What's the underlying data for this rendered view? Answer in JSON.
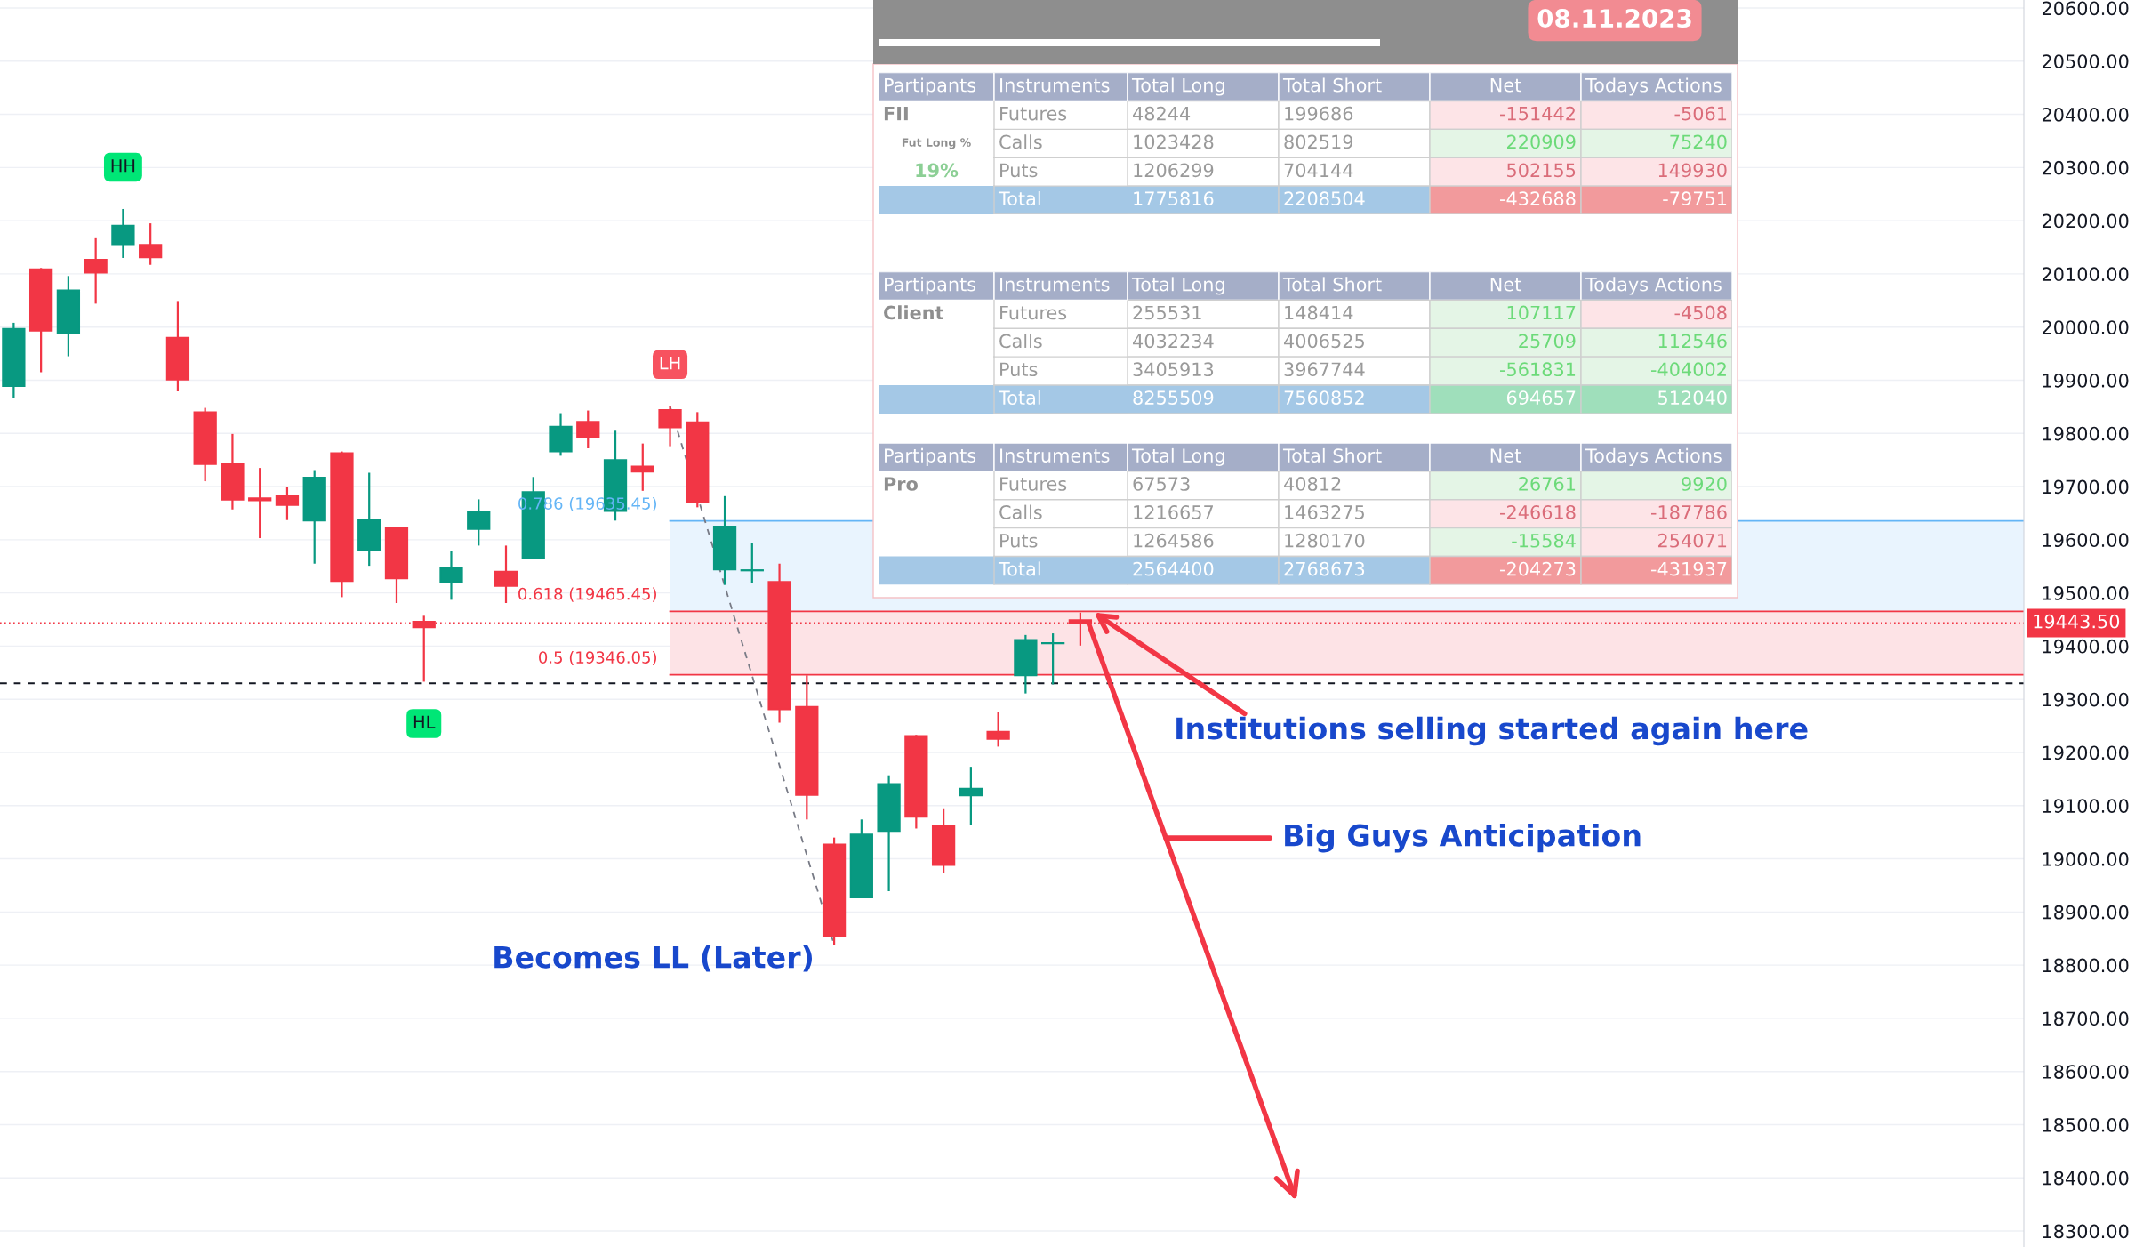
{
  "chart_data": [
    {
      "type": "candlestick",
      "categories": [
        null,
        null,
        null,
        null,
        null,
        null,
        null,
        null,
        null,
        null,
        null,
        null,
        null,
        null,
        null,
        null,
        null,
        null,
        null,
        null,
        null,
        null,
        null,
        null,
        null,
        null,
        null,
        null,
        null,
        null,
        null,
        null,
        null,
        null,
        null,
        null,
        null,
        null,
        null,
        null,
        null,
        null,
        null,
        null,
        null,
        null,
        null,
        null,
        null,
        null,
        null,
        null,
        null,
        null,
        null,
        null,
        null,
        null,
        null,
        null,
        null,
        null,
        null,
        null,
        null,
        null,
        null,
        null,
        null,
        null,
        null,
        null,
        null,
        null
      ],
      "ohlc": [
        [
          19889,
          20008,
          19866,
          19997
        ],
        [
          20109,
          20111,
          19915,
          19993
        ],
        [
          19988,
          20096,
          19945,
          20069
        ],
        [
          20127,
          20167,
          20044,
          20102
        ],
        [
          20154,
          20222,
          20130,
          20191
        ],
        [
          20155,
          20195,
          20117,
          20131
        ],
        [
          19980,
          20049,
          19879,
          19901
        ],
        [
          19840,
          19848,
          19710,
          19742
        ],
        [
          19744,
          19799,
          19657,
          19675
        ],
        [
          19678,
          19735,
          19603,
          19674
        ],
        [
          19683,
          19700,
          19637,
          19665
        ],
        [
          19636,
          19731,
          19555,
          19717
        ],
        [
          19763,
          19766,
          19492,
          19522
        ],
        [
          19580,
          19726,
          19551,
          19638
        ],
        [
          19622,
          19624,
          19481,
          19527
        ],
        [
          19446,
          19457,
          19333,
          19435
        ],
        [
          19520,
          19578,
          19487,
          19547
        ],
        [
          19620,
          19676,
          19589,
          19653
        ],
        [
          19540,
          19589,
          19481,
          19513
        ],
        [
          19565,
          19718,
          19565,
          19690
        ],
        [
          19766,
          19838,
          19758,
          19813
        ],
        [
          19822,
          19843,
          19772,
          19793
        ],
        [
          19654,
          19805,
          19636,
          19750
        ],
        [
          19738,
          19781,
          19692,
          19728
        ],
        [
          19844,
          19851,
          19776,
          19811
        ],
        [
          19821,
          19840,
          19661,
          19671
        ],
        [
          19544,
          19682,
          19515,
          19625
        ],
        [
          19542,
          19593,
          19519,
          19543
        ],
        [
          19521,
          19555,
          19256,
          19281
        ],
        [
          19286,
          19345,
          19074,
          19120
        ],
        [
          19027,
          19040,
          18838,
          18855
        ],
        [
          18927,
          19074,
          18927,
          19046
        ],
        [
          19052,
          19157,
          18939,
          19141
        ],
        [
          19231,
          19233,
          19057,
          19079
        ],
        [
          19062,
          19095,
          18973,
          18988
        ],
        [
          19119,
          19173,
          19064,
          19132
        ],
        [
          19239,
          19276,
          19211,
          19225
        ],
        [
          19345,
          19421,
          19311,
          19412
        ],
        [
          19405,
          19424,
          19328,
          19406
        ],
        [
          19449,
          19463,
          19401,
          19443.5
        ],
        null,
        null,
        null,
        null,
        null,
        null,
        null,
        null,
        null,
        null,
        null,
        null,
        null,
        null,
        null,
        null,
        null,
        null,
        null,
        null,
        null,
        null,
        null,
        null,
        null,
        null,
        null,
        null,
        null,
        null,
        null,
        null,
        null,
        null
      ],
      "colors": [
        "#089981",
        "#f23645",
        "#089981",
        "#f23645",
        "#089981",
        "#f23645",
        "#f23645",
        "#f23645",
        "#f23645",
        "#f23645",
        "#f23645",
        "#089981",
        "#f23645",
        "#089981",
        "#f23645",
        "#f23645",
        "#089981",
        "#089981",
        "#f23645",
        "#089981",
        "#089981",
        "#f23645",
        "#089981",
        "#f23645",
        "#f23645",
        "#f23645",
        "#089981",
        "#089981",
        "#f23645",
        "#f23645",
        "#f23645",
        "#089981",
        "#089981",
        "#f23645",
        "#f23645",
        "#089981",
        "#f23645",
        "#089981",
        "#089981",
        "#f23645",
        null,
        null,
        null,
        null,
        null,
        null,
        null,
        null,
        null,
        null,
        null,
        null,
        null,
        null,
        null,
        null,
        null,
        null,
        null,
        null,
        null,
        null,
        null,
        null,
        null,
        null,
        null,
        null,
        null,
        null,
        null,
        null,
        null,
        null
      ],
      "ylim": [
        18270,
        20615
      ],
      "yticks": [
        {
          "value": 18300,
          "label": "18300.00"
        },
        {
          "value": 18400,
          "label": "18400.00"
        },
        {
          "value": 18500,
          "label": "18500.00"
        },
        {
          "value": 18600,
          "label": "18600.00"
        },
        {
          "value": 18700,
          "label": "18700.00"
        },
        {
          "value": 18800,
          "label": "18800.00"
        },
        {
          "value": 18900,
          "label": "18900.00"
        },
        {
          "value": 19000,
          "label": "19000.00"
        },
        {
          "value": 19100,
          "label": "19100.00"
        },
        {
          "value": 19200,
          "label": "19200.00"
        },
        {
          "value": 19300,
          "label": "19300.00"
        },
        {
          "value": 19400,
          "label": "19400.00"
        },
        {
          "value": 19500,
          "label": "19500.00"
        },
        {
          "value": 19600,
          "label": "19600.00"
        },
        {
          "value": 19700,
          "label": "19700.00"
        },
        {
          "value": 19800,
          "label": "19800.00"
        },
        {
          "value": 19900,
          "label": "19900.00"
        },
        {
          "value": 20000,
          "label": "20000.00"
        },
        {
          "value": 20100,
          "label": "20100.00"
        },
        {
          "value": 20200,
          "label": "20200.00"
        },
        {
          "value": 20300,
          "label": "20300.00"
        },
        {
          "value": 20400,
          "label": "20400.00"
        },
        {
          "value": 20500,
          "label": "20500.00"
        },
        {
          "value": 20600,
          "label": "20600.00"
        }
      ],
      "tick_labels": "y",
      "grid": true,
      "bands": [
        {
          "axis": "y",
          "from": 19346.05,
          "to": 19465.45,
          "color": "#fde3e6"
        },
        {
          "axis": "y",
          "from": 19465.45,
          "to": 19635.45,
          "color": "#e9f4fe"
        }
      ],
      "ref_lines": [
        {
          "axis": "y",
          "value": 19635.45,
          "label": "0.786 (19635.45)",
          "color": "#64b5f6"
        },
        {
          "axis": "y",
          "value": 19465.45,
          "label": "0.618 (19465.45)",
          "color": "#f23645"
        },
        {
          "axis": "y",
          "value": 19346.05,
          "label": "0.5 (19346.05)",
          "color": "#f23645"
        },
        {
          "axis": "y",
          "value": 19443.5,
          "label": "19443.50",
          "color": "#f23645",
          "line_style": "dotted"
        },
        {
          "axis": "y",
          "value": 19330,
          "color": "#131722",
          "line_style": "dashed"
        }
      ],
      "annotations": [
        {
          "text": "HH",
          "y": 20222
        },
        {
          "text": "LH",
          "y": 19851
        },
        {
          "text": "HL",
          "y": 19333
        },
        "Becomes LL (Later)",
        "Institutions selling started again here",
        "Big Guys Anticipation"
      ]
    },
    {
      "type": "heatmap",
      "title": "08.11.2023",
      "ylabel": "Instruments",
      "y2label": "Partipants",
      "categories": [
        "Total Long",
        "Total Short",
        "Net",
        "Todays Actions"
      ],
      "y_categories": [
        "Futures",
        "Calls",
        "Puts",
        "Total"
      ],
      "y2_categories": [
        "FII",
        "Fut Long %",
        "19%",
        null
      ],
      "cells": [
        [
          48244,
          199686,
          -151442,
          -5061
        ],
        [
          1023428,
          802519,
          220909,
          75240
        ],
        [
          1206299,
          704144,
          502155,
          149930
        ],
        [
          1775816,
          2208504,
          -432688,
          -79751
        ]
      ],
      "colors": [
        [
          "#ffffff",
          "#ffffff",
          "#fde4e7",
          "#fde4e7"
        ],
        [
          "#ffffff",
          "#ffffff",
          "#e4f5e6",
          "#e4f5e6"
        ],
        [
          "#ffffff",
          "#ffffff",
          "#fde4e7",
          "#fde4e7"
        ],
        [
          "#a4c8e6",
          "#a4c8e6",
          "#f29a9c",
          "#f29a9c"
        ]
      ],
      "data_labels": true
    },
    {
      "type": "heatmap",
      "ylabel": "Instruments",
      "y2label": "Partipants",
      "categories": [
        "Total Long",
        "Total Short",
        "Net",
        "Todays Actions"
      ],
      "y_categories": [
        "Futures",
        "Calls",
        "Puts",
        "Total"
      ],
      "y2_categories": [
        "Client",
        null,
        null,
        null
      ],
      "cells": [
        [
          255531,
          148414,
          107117,
          -4508
        ],
        [
          4032234,
          4006525,
          25709,
          112546
        ],
        [
          3405913,
          3967744,
          -561831,
          -404002
        ],
        [
          8255509,
          7560852,
          694657,
          512040
        ]
      ],
      "colors": [
        [
          "#ffffff",
          "#ffffff",
          "#e4f5e6",
          "#fde4e7"
        ],
        [
          "#ffffff",
          "#ffffff",
          "#e4f5e6",
          "#e4f5e6"
        ],
        [
          "#ffffff",
          "#ffffff",
          "#e4f5e6",
          "#e4f5e6"
        ],
        [
          "#a4c8e6",
          "#a4c8e6",
          "#9fdfbb",
          "#9fdfbb"
        ]
      ],
      "data_labels": true
    },
    {
      "type": "heatmap",
      "ylabel": "Instruments",
      "y2label": "Partipants",
      "categories": [
        "Total Long",
        "Total Short",
        "Net",
        "Todays Actions"
      ],
      "y_categories": [
        "Futures",
        "Calls",
        "Puts",
        "Total"
      ],
      "y2_categories": [
        "Pro",
        null,
        null,
        null
      ],
      "cells": [
        [
          67573,
          40812,
          26761,
          9920
        ],
        [
          1216657,
          1463275,
          -246618,
          -187786
        ],
        [
          1264586,
          1280170,
          -15584,
          254071
        ],
        [
          2564400,
          2768673,
          -204273,
          -431937
        ]
      ],
      "colors": [
        [
          "#ffffff",
          "#ffffff",
          "#e4f5e6",
          "#e4f5e6"
        ],
        [
          "#ffffff",
          "#ffffff",
          "#fde4e7",
          "#fde4e7"
        ],
        [
          "#ffffff",
          "#ffffff",
          "#e4f5e6",
          "#fde4e7"
        ],
        [
          "#a4c8e6",
          "#a4c8e6",
          "#f29a9c",
          "#f29a9c"
        ]
      ],
      "data_labels": true
    }
  ]
}
